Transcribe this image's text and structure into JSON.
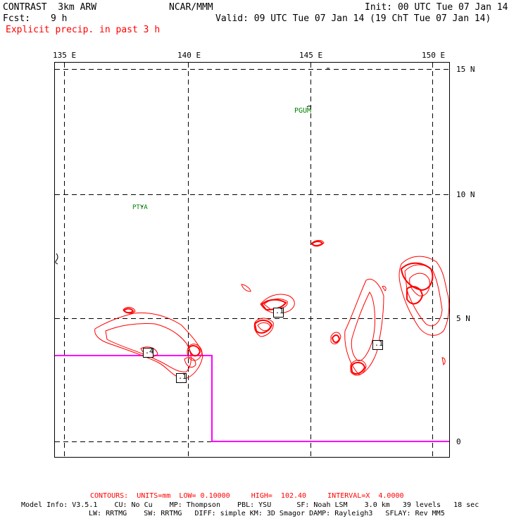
{
  "header": {
    "model": "CONTRAST  3km ARW",
    "org": "NCAR/MMM",
    "init": "Init: 00 UTC Tue 07 Jan 14",
    "fcst_label": "Fcst:",
    "fcst_value": "9 h",
    "valid": "Valid: 09 UTC Tue 07 Jan 14 (19 ChT Tue 07 Jan 14)",
    "field": "Explicit precip. in past 3 h"
  },
  "axes": {
    "lon_labels": [
      "135 E",
      "140 E",
      "145 E",
      "150 E"
    ],
    "lat_labels": [
      "15 N",
      "10 N",
      "5 N",
      "0"
    ]
  },
  "stations": [
    "PGUM",
    "PTYA"
  ],
  "contour_labels": [
    ".1",
    ".4",
    ".1",
    ".1"
  ],
  "colors": {
    "contour": "#ff0000",
    "outline": "#ff00ff",
    "station": "#008000",
    "grid": "#000000"
  },
  "footer": {
    "contours": "CONTOURS:  UNITS=mm  LOW= 0.10000     HIGH=  102.40     INTERVAL=X  4.0000",
    "model_info_1": "Model Info: V3.5.1    CU: No Cu    MP: Thompson    PBL: YSU      SF: Noah LSM    3.0 km   39 levels   18 sec",
    "model_info_2": "LW: RRTMG    SW: RRTMG   DIFF: simple KM: 3D Smagor DAMP: Rayleigh3   SFLAY: Rev MM5"
  }
}
